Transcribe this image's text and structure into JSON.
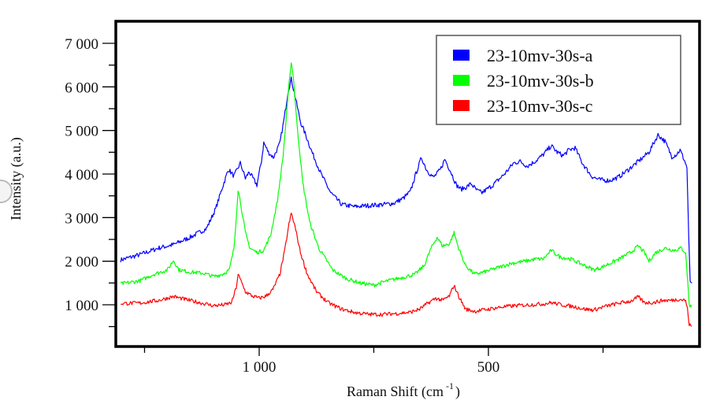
{
  "chart_data": {
    "type": "line",
    "title": "",
    "xlabel": "Raman Shift (cm",
    "xlabel_superscript": "-1",
    "xlabel_suffix": ")",
    "ylabel": "Intensity (a.u.)",
    "xlim": [
      1311,
      50
    ],
    "x_reversed": true,
    "ylim": [
      0,
      7500
    ],
    "grid": false,
    "legend_position": "top-right",
    "x_ticks": [
      {
        "value": 1250,
        "label": ""
      },
      {
        "value": 1000,
        "label": "1 000"
      },
      {
        "value": 750,
        "label": ""
      },
      {
        "value": 500,
        "label": "500"
      },
      {
        "value": 250,
        "label": ""
      }
    ],
    "y_ticks": [
      {
        "value": 500,
        "label": ""
      },
      {
        "value": 1000,
        "label": "1 000"
      },
      {
        "value": 1500,
        "label": ""
      },
      {
        "value": 2000,
        "label": "2 000"
      },
      {
        "value": 2500,
        "label": ""
      },
      {
        "value": 3000,
        "label": "3 000"
      },
      {
        "value": 3500,
        "label": ""
      },
      {
        "value": 4000,
        "label": "4 000"
      },
      {
        "value": 4500,
        "label": ""
      },
      {
        "value": 5000,
        "label": "5 000"
      },
      {
        "value": 5500,
        "label": ""
      },
      {
        "value": 6000,
        "label": "6 000"
      },
      {
        "value": 6500,
        "label": ""
      },
      {
        "value": 7000,
        "label": "7 000"
      }
    ],
    "series": [
      {
        "name": "23-10mv-30s-a",
        "color": "#0000ff",
        "points": [
          [
            1302,
            2030
          ],
          [
            1260,
            2150
          ],
          [
            1220,
            2300
          ],
          [
            1187,
            2380
          ],
          [
            1150,
            2550
          ],
          [
            1115,
            2750
          ],
          [
            1095,
            3200
          ],
          [
            1080,
            3700
          ],
          [
            1067,
            4110
          ],
          [
            1055,
            3950
          ],
          [
            1041,
            4250
          ],
          [
            1030,
            3900
          ],
          [
            1022,
            4050
          ],
          [
            1005,
            3750
          ],
          [
            995,
            4300
          ],
          [
            990,
            4720
          ],
          [
            980,
            4500
          ],
          [
            969,
            4380
          ],
          [
            955,
            4700
          ],
          [
            945,
            5300
          ],
          [
            937,
            5900
          ],
          [
            930,
            6180
          ],
          [
            922,
            5800
          ],
          [
            910,
            5200
          ],
          [
            895,
            4800
          ],
          [
            887,
            4560
          ],
          [
            865,
            4000
          ],
          [
            844,
            3570
          ],
          [
            820,
            3300
          ],
          [
            792,
            3250
          ],
          [
            760,
            3280
          ],
          [
            730,
            3300
          ],
          [
            706,
            3330
          ],
          [
            685,
            3450
          ],
          [
            670,
            3600
          ],
          [
            660,
            3950
          ],
          [
            646,
            4380
          ],
          [
            635,
            4100
          ],
          [
            620,
            3920
          ],
          [
            605,
            4100
          ],
          [
            595,
            4340
          ],
          [
            582,
            4050
          ],
          [
            570,
            3750
          ],
          [
            560,
            3650
          ],
          [
            548,
            3700
          ],
          [
            538,
            3780
          ],
          [
            525,
            3620
          ],
          [
            514,
            3570
          ],
          [
            490,
            3750
          ],
          [
            465,
            4000
          ],
          [
            445,
            4250
          ],
          [
            431,
            4290
          ],
          [
            415,
            4180
          ],
          [
            397,
            4300
          ],
          [
            380,
            4450
          ],
          [
            363,
            4650
          ],
          [
            350,
            4500
          ],
          [
            337,
            4420
          ],
          [
            325,
            4550
          ],
          [
            311,
            4600
          ],
          [
            295,
            4250
          ],
          [
            275,
            3950
          ],
          [
            259,
            3870
          ],
          [
            235,
            3850
          ],
          [
            216,
            3930
          ],
          [
            195,
            4100
          ],
          [
            173,
            4290
          ],
          [
            150,
            4500
          ],
          [
            130,
            4900
          ],
          [
            115,
            4750
          ],
          [
            100,
            4400
          ],
          [
            90,
            4450
          ],
          [
            82,
            4550
          ],
          [
            72,
            4300
          ],
          [
            67,
            4150
          ],
          [
            63,
            2500
          ],
          [
            60,
            1550
          ],
          [
            56,
            1500
          ]
        ]
      },
      {
        "name": "23-10mv-30s-b",
        "color": "#00ff00",
        "points": [
          [
            1302,
            1480
          ],
          [
            1260,
            1550
          ],
          [
            1230,
            1700
          ],
          [
            1200,
            1800
          ],
          [
            1187,
            2020
          ],
          [
            1175,
            1800
          ],
          [
            1150,
            1750
          ],
          [
            1120,
            1720
          ],
          [
            1100,
            1650
          ],
          [
            1080,
            1700
          ],
          [
            1065,
            1800
          ],
          [
            1055,
            2300
          ],
          [
            1050,
            3000
          ],
          [
            1046,
            3650
          ],
          [
            1040,
            3300
          ],
          [
            1030,
            2650
          ],
          [
            1020,
            2300
          ],
          [
            1005,
            2200
          ],
          [
            990,
            2250
          ],
          [
            975,
            2600
          ],
          [
            960,
            3400
          ],
          [
            948,
            4400
          ],
          [
            940,
            5400
          ],
          [
            933,
            6300
          ],
          [
            930,
            6550
          ],
          [
            926,
            6300
          ],
          [
            918,
            5200
          ],
          [
            905,
            3800
          ],
          [
            890,
            2900
          ],
          [
            870,
            2300
          ],
          [
            840,
            1800
          ],
          [
            810,
            1600
          ],
          [
            780,
            1500
          ],
          [
            750,
            1450
          ],
          [
            720,
            1550
          ],
          [
            690,
            1620
          ],
          [
            660,
            1700
          ],
          [
            640,
            1900
          ],
          [
            625,
            2300
          ],
          [
            612,
            2550
          ],
          [
            600,
            2350
          ],
          [
            585,
            2400
          ],
          [
            575,
            2650
          ],
          [
            565,
            2300
          ],
          [
            550,
            1900
          ],
          [
            530,
            1700
          ],
          [
            510,
            1750
          ],
          [
            480,
            1850
          ],
          [
            450,
            1950
          ],
          [
            420,
            2000
          ],
          [
            397,
            2050
          ],
          [
            380,
            2050
          ],
          [
            363,
            2250
          ],
          [
            345,
            2100
          ],
          [
            320,
            2050
          ],
          [
            290,
            1900
          ],
          [
            270,
            1800
          ],
          [
            255,
            1850
          ],
          [
            235,
            1950
          ],
          [
            215,
            2050
          ],
          [
            190,
            2200
          ],
          [
            173,
            2350
          ],
          [
            160,
            2200
          ],
          [
            150,
            2000
          ],
          [
            135,
            2200
          ],
          [
            115,
            2300
          ],
          [
            95,
            2250
          ],
          [
            80,
            2300
          ],
          [
            70,
            2200
          ],
          [
            65,
            1500
          ],
          [
            62,
            1000
          ],
          [
            57,
            950
          ]
        ]
      },
      {
        "name": "23-10mv-30s-c",
        "color": "#ff0000",
        "points": [
          [
            1302,
            1030
          ],
          [
            1260,
            1040
          ],
          [
            1220,
            1100
          ],
          [
            1187,
            1190
          ],
          [
            1160,
            1120
          ],
          [
            1130,
            1050
          ],
          [
            1100,
            980
          ],
          [
            1075,
            1000
          ],
          [
            1060,
            1050
          ],
          [
            1050,
            1400
          ],
          [
            1046,
            1700
          ],
          [
            1040,
            1550
          ],
          [
            1030,
            1300
          ],
          [
            1015,
            1200
          ],
          [
            1000,
            1150
          ],
          [
            985,
            1200
          ],
          [
            970,
            1350
          ],
          [
            955,
            1700
          ],
          [
            945,
            2200
          ],
          [
            935,
            2850
          ],
          [
            930,
            3100
          ],
          [
            922,
            2800
          ],
          [
            910,
            2200
          ],
          [
            895,
            1700
          ],
          [
            875,
            1300
          ],
          [
            850,
            1050
          ],
          [
            820,
            900
          ],
          [
            790,
            820
          ],
          [
            760,
            780
          ],
          [
            730,
            780
          ],
          [
            700,
            800
          ],
          [
            670,
            830
          ],
          [
            650,
            900
          ],
          [
            630,
            1050
          ],
          [
            615,
            1150
          ],
          [
            600,
            1100
          ],
          [
            585,
            1200
          ],
          [
            575,
            1450
          ],
          [
            565,
            1200
          ],
          [
            550,
            900
          ],
          [
            530,
            850
          ],
          [
            500,
            900
          ],
          [
            470,
            950
          ],
          [
            440,
            980
          ],
          [
            410,
            1000
          ],
          [
            380,
            1020
          ],
          [
            363,
            1050
          ],
          [
            340,
            1000
          ],
          [
            310,
            950
          ],
          [
            290,
            900
          ],
          [
            270,
            880
          ],
          [
            250,
            950
          ],
          [
            230,
            1000
          ],
          [
            210,
            1050
          ],
          [
            190,
            1080
          ],
          [
            173,
            1180
          ],
          [
            160,
            1050
          ],
          [
            140,
            1050
          ],
          [
            120,
            1100
          ],
          [
            100,
            1100
          ],
          [
            85,
            1130
          ],
          [
            70,
            1100
          ],
          [
            66,
            900
          ],
          [
            62,
            550
          ],
          [
            57,
            500
          ]
        ]
      }
    ]
  }
}
